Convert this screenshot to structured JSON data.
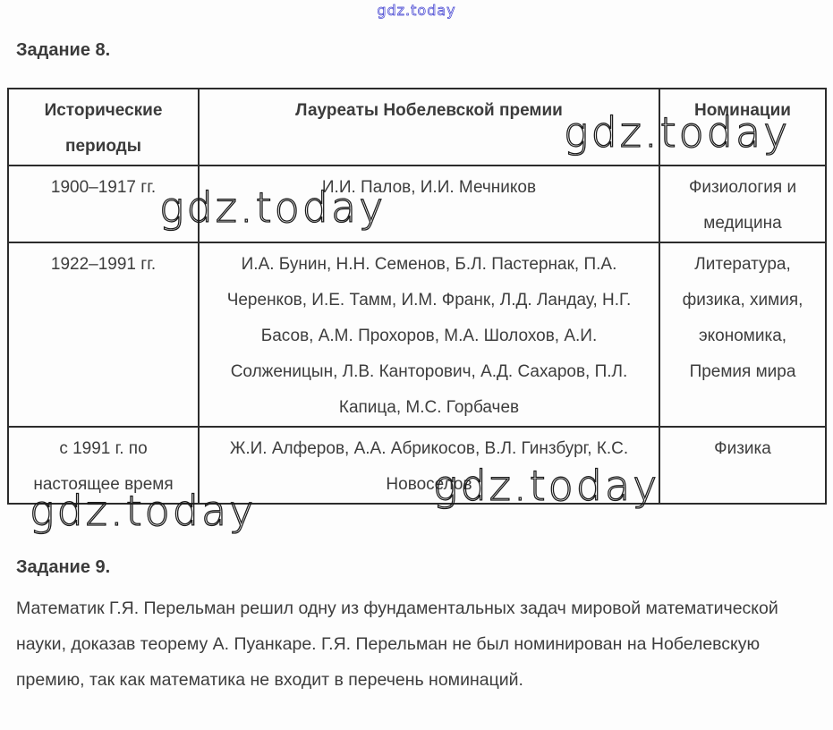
{
  "watermark": {
    "text": "gdz.today",
    "top_color": "#3d3dd0",
    "dark_color": "#1d1d1d"
  },
  "task8": {
    "title": "Задание 8."
  },
  "table": {
    "headers": [
      "Исторические периоды",
      "Лауреаты Нобелевской премии",
      "Номинации"
    ],
    "rows": [
      {
        "period": "1900–1917 гг.",
        "laureates": "И.И. Палов, И.И. Мечников",
        "nominations": "Физиология и медицина"
      },
      {
        "period": "1922–1991 гг.",
        "laureates": "И.А. Бунин, Н.Н. Семенов, Б.Л. Пастернак, П.А. Черенков, И.Е. Тамм, И.М. Франк, Л.Д. Ландау, Н.Г. Басов, А.М. Прохоров, М.А. Шолохов, А.И. Солженицын, Л.В. Канторович, А.Д. Сахаров, П.Л. Капица, М.С. Горбачев",
        "nominations": "Литература, физика, химия, экономика, Премия мира"
      },
      {
        "period": "с 1991 г. по настоящее время",
        "laureates": "Ж.И. Алферов, А.А. Абрикосов, В.Л. Гинзбург, К.С. Новоселов",
        "nominations": "Физика"
      }
    ]
  },
  "task9": {
    "title": "Задание 9.",
    "paragraph": "Математик Г.Я. Перельман решил одну из фундаментальных задач мировой математической науки, доказав теорему А. Пуанкаре. Г.Я. Перельман не был номинирован на Нобелевскую премию, так как математика не входит в перечень номинаций."
  }
}
